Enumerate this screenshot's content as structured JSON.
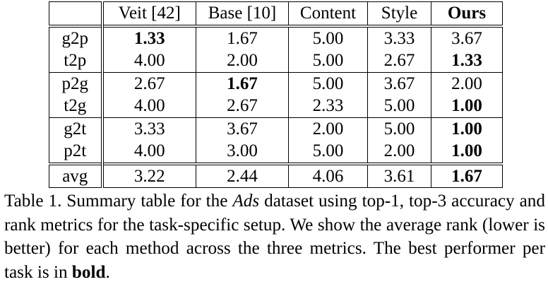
{
  "table": {
    "columns": [
      "",
      "Veit [42]",
      "Base [10]",
      "Content",
      "Style",
      "Ours"
    ],
    "groups": [
      {
        "rows": [
          {
            "label": "g2p",
            "values": [
              "1.33",
              "1.67",
              "5.00",
              "3.33",
              "3.67"
            ],
            "best": [
              0
            ]
          },
          {
            "label": "t2p",
            "values": [
              "4.00",
              "2.00",
              "5.00",
              "2.67",
              "1.33"
            ],
            "best": [
              4
            ]
          }
        ]
      },
      {
        "rows": [
          {
            "label": "p2g",
            "values": [
              "2.67",
              "1.67",
              "5.00",
              "3.67",
              "2.00"
            ],
            "best": [
              1
            ]
          },
          {
            "label": "t2g",
            "values": [
              "4.00",
              "2.67",
              "2.33",
              "5.00",
              "1.00"
            ],
            "best": [
              4
            ]
          }
        ]
      },
      {
        "rows": [
          {
            "label": "g2t",
            "values": [
              "3.33",
              "3.67",
              "2.00",
              "5.00",
              "1.00"
            ],
            "best": [
              4
            ]
          },
          {
            "label": "p2t",
            "values": [
              "4.00",
              "3.00",
              "5.00",
              "2.00",
              "1.00"
            ],
            "best": [
              4
            ]
          }
        ]
      },
      {
        "rows": [
          {
            "label": "avg",
            "values": [
              "3.22",
              "2.44",
              "4.06",
              "3.61",
              "1.67"
            ],
            "best": [
              4
            ]
          }
        ]
      }
    ]
  },
  "caption": {
    "prefix": "Table 1. Summary table for the ",
    "dataset": "Ads",
    "middle": " dataset using top-1, top-3 accuracy and rank metrics for the task-specific setup. We show the average rank (lower is better) for each method across the three metrics. The best performer per task is in ",
    "bold_word": "bold",
    "suffix": "."
  }
}
